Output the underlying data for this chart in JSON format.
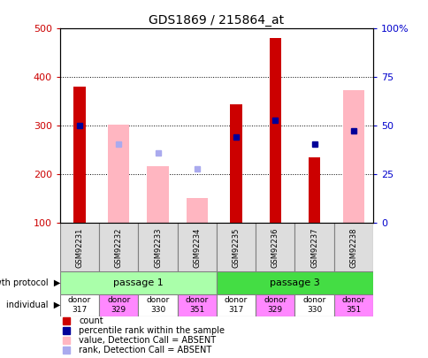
{
  "title": "GDS1869 / 215864_at",
  "samples": [
    "GSM92231",
    "GSM92232",
    "GSM92233",
    "GSM92234",
    "GSM92235",
    "GSM92236",
    "GSM92237",
    "GSM92238"
  ],
  "count_values": [
    380,
    null,
    null,
    null,
    345,
    480,
    235,
    null
  ],
  "absent_value_values": [
    null,
    303,
    218,
    152,
    null,
    null,
    null,
    373
  ],
  "percentile_rank": [
    300,
    null,
    null,
    null,
    278,
    312,
    262,
    290
  ],
  "absent_rank_values": [
    null,
    263,
    245,
    212,
    null,
    null,
    null,
    null
  ],
  "growth_protocol": [
    {
      "label": "passage 1",
      "start": 0,
      "end": 4,
      "color": "#aaffaa"
    },
    {
      "label": "passage 3",
      "start": 4,
      "end": 8,
      "color": "#44dd44"
    }
  ],
  "individual": [
    {
      "label": "donor\n317",
      "color": "#ffffff"
    },
    {
      "label": "donor\n329",
      "color": "#ff88ff"
    },
    {
      "label": "donor\n330",
      "color": "#ffffff"
    },
    {
      "label": "donor\n351",
      "color": "#ff88ff"
    },
    {
      "label": "donor\n317",
      "color": "#ffffff"
    },
    {
      "label": "donor\n329",
      "color": "#ff88ff"
    },
    {
      "label": "donor\n330",
      "color": "#ffffff"
    },
    {
      "label": "donor\n351",
      "color": "#ff88ff"
    }
  ],
  "ylim_left": [
    100,
    500
  ],
  "ylim_right": [
    0,
    100
  ],
  "y_ticks_left": [
    100,
    200,
    300,
    400,
    500
  ],
  "y_ticks_right": [
    0,
    25,
    50,
    75,
    100
  ],
  "count_color": "#cc0000",
  "absent_value_color": "#ffb6c1",
  "percentile_color": "#000099",
  "absent_rank_color": "#aaaaee",
  "left_tick_color": "#cc0000",
  "right_tick_color": "#0000cc",
  "legend_items": [
    {
      "color": "#cc0000",
      "label": "count"
    },
    {
      "color": "#000099",
      "label": "percentile rank within the sample"
    },
    {
      "color": "#ffb6c1",
      "label": "value, Detection Call = ABSENT"
    },
    {
      "color": "#aaaaee",
      "label": "rank, Detection Call = ABSENT"
    }
  ]
}
